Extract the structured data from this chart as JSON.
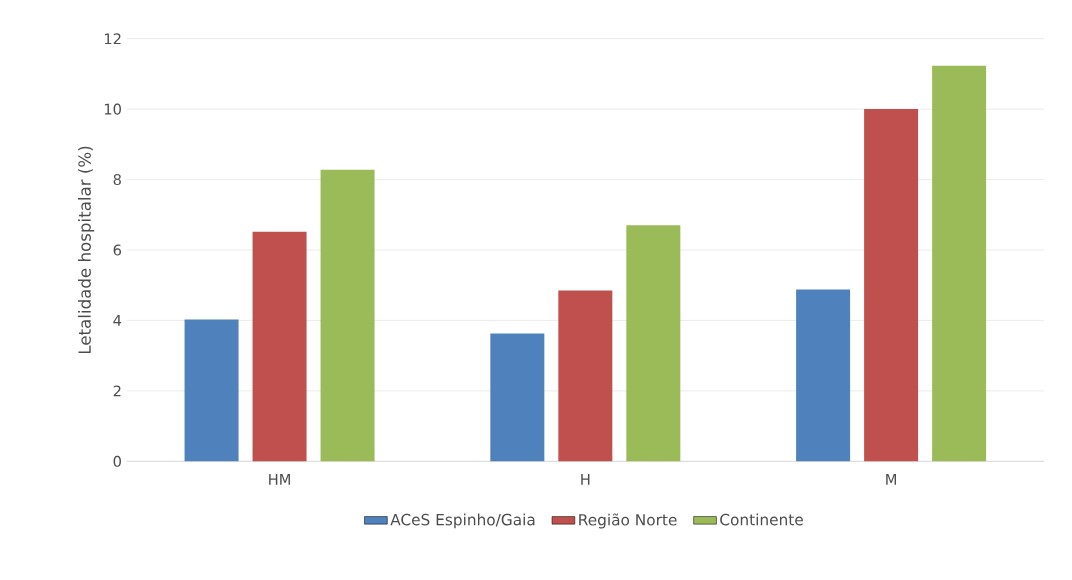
{
  "chart_data": {
    "type": "bar",
    "ylabel": "Letalidade hospitalar (%)",
    "categories": [
      "HM",
      "H",
      "M"
    ],
    "series": [
      {
        "name": "ACeS Espinho/Gaia",
        "color": "#4f81bd",
        "values": [
          4.03,
          3.63,
          4.88
        ]
      },
      {
        "name": "Região Norte",
        "color": "#c0504d",
        "values": [
          6.52,
          4.85,
          10.0
        ]
      },
      {
        "name": "Continente",
        "color": "#9bbb59",
        "values": [
          8.28,
          6.7,
          11.23
        ]
      }
    ],
    "ylim": [
      0,
      12
    ],
    "yticks": [
      0,
      2,
      4,
      6,
      8,
      10,
      12
    ],
    "grid": "y",
    "legend": "bottom"
  }
}
